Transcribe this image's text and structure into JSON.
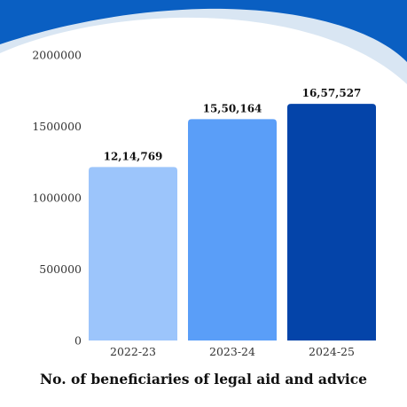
{
  "chart_data": {
    "type": "bar",
    "title": "No. of beneficiaries of legal aid and advice",
    "categories": [
      "2022-23",
      "2023-24",
      "2024-25"
    ],
    "values": [
      1214769,
      1550164,
      1657527
    ],
    "data_labels": [
      "12,14,769",
      "15,50,164",
      "16,57,527"
    ],
    "bar_colors": [
      "#9cc5fb",
      "#5a9ef8",
      "#0444a9"
    ],
    "ylim": [
      0,
      2000000
    ],
    "yticks": [
      0,
      500000,
      1000000,
      1500000,
      2000000
    ],
    "ytick_labels": [
      "0",
      "500000",
      "1000000",
      "1500000",
      "2000000"
    ],
    "grid": false,
    "legend": "none"
  },
  "theme": {
    "wave_dark": "#0a5fc2",
    "wave_light": "#d9e6f3"
  }
}
